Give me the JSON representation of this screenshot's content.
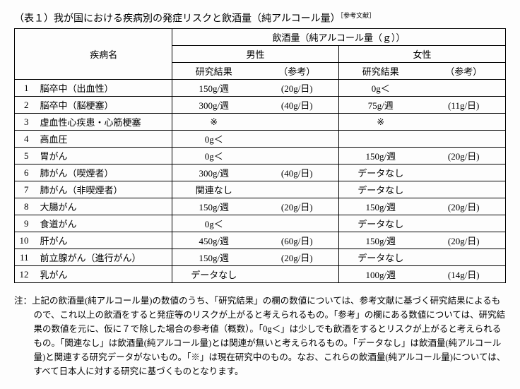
{
  "title": {
    "text": "（表１）我が国における疾病別の発症リスクと飲酒量（純アルコール量）",
    "ref": "［参考文献］"
  },
  "header": {
    "disease": "疾病名",
    "alcohol": "飲酒量（純アルコール量（ｇ））",
    "male": "男性",
    "female": "女性",
    "result": "研究結果",
    "ref": "（参考）"
  },
  "rows": [
    {
      "n": "1",
      "disease": "脳卒中（出血性）",
      "m_res": "150g/週",
      "m_ref": "(20g/日)",
      "f_res": "0g＜",
      "f_ref": ""
    },
    {
      "n": "2",
      "disease": "脳卒中（脳梗塞）",
      "m_res": "300g/週",
      "m_ref": "(40g/日)",
      "f_res": "75g/週",
      "f_ref": "(11g/日)"
    },
    {
      "n": "3",
      "disease": "虚血性心疾患・心筋梗塞",
      "m_res": "※",
      "m_ref": "",
      "f_res": "※",
      "f_ref": ""
    },
    {
      "n": "4",
      "disease": "高血圧",
      "m_res": "0g＜",
      "m_ref": "",
      "f_res": "",
      "f_ref": ""
    },
    {
      "n": "5",
      "disease": "胃がん",
      "m_res": "0g＜",
      "m_ref": "",
      "f_res": "150g/週",
      "f_ref": "(20g/日)"
    },
    {
      "n": "6",
      "disease": "肺がん（喫煙者）",
      "m_res": "300g/週",
      "m_ref": "(40g/日)",
      "f_res": "データなし",
      "f_ref": ""
    },
    {
      "n": "7",
      "disease": "肺がん（非喫煙者）",
      "m_res": "関連なし",
      "m_ref": "",
      "f_res": "データなし",
      "f_ref": ""
    },
    {
      "n": "8",
      "disease": "大腸がん",
      "m_res": "150g/週",
      "m_ref": "(20g/日)",
      "f_res": "150g/週",
      "f_ref": "(20g/日)"
    },
    {
      "n": "9",
      "disease": "食道がん",
      "m_res": "0g＜",
      "m_ref": "",
      "f_res": "データなし",
      "f_ref": ""
    },
    {
      "n": "10",
      "disease": "肝がん",
      "m_res": "450g/週",
      "m_ref": "(60g/日)",
      "f_res": "150g/週",
      "f_ref": "(20g/日)"
    },
    {
      "n": "11",
      "disease": "前立腺がん（進行がん）",
      "m_res": "150g/週",
      "m_ref": "(20g/日)",
      "f_res": "データなし",
      "f_ref": ""
    },
    {
      "n": "12",
      "disease": "乳がん",
      "m_res": "データなし",
      "m_ref": "",
      "f_res": "100g/週",
      "f_ref": "(14g/日)"
    }
  ],
  "note": {
    "prefix": "注：",
    "text": "上記の飲酒量(純アルコール量)の数値のうち、「研究結果」の欄の数値については、参考文献に基づく研究結果によるもので、これ以上の飲酒をすると発症等のリスクが上がると考えられるもの。「参考」の欄にある数値については、研究結果の数値を元に、仮に７で除した場合の参考値（概数）。「0g＜」は少しでも飲酒をするとリスクが上がると考えられるもの。「関連なし」は飲酒量(純アルコール量)とは関連が無いと考えられるもの。「データなし」は飲酒量(純アルコール量)と関連する研究データがないもの。「※」は現在研究中のもの。なお、これらの飲酒量(純アルコール量)については、すべて日本人に対する研究に基づくものとなります。"
  }
}
